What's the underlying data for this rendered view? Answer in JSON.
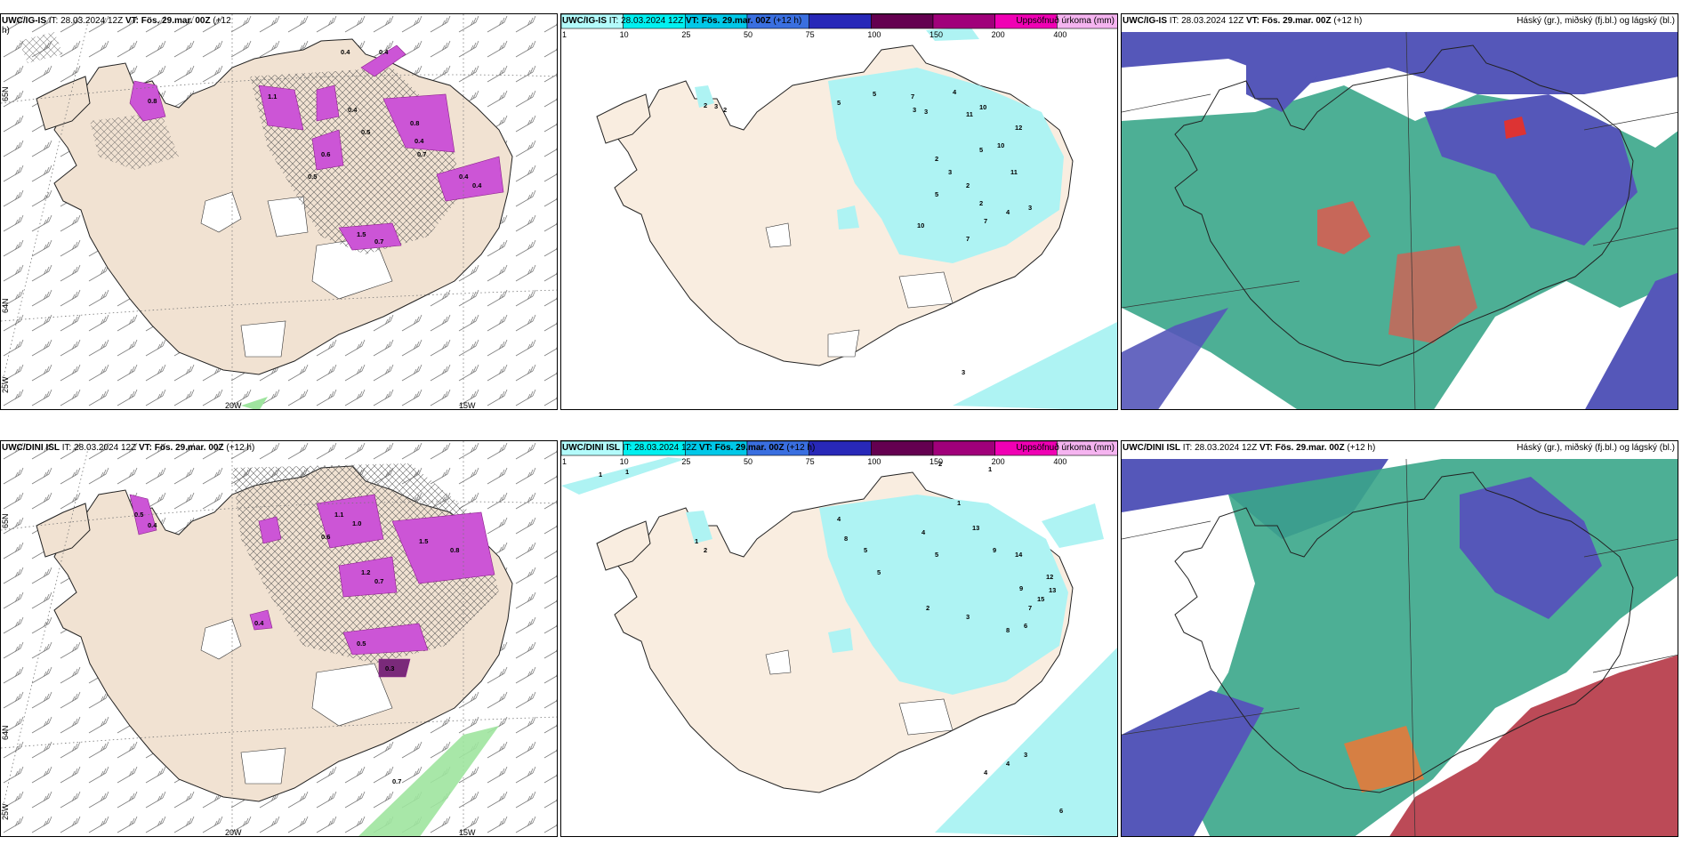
{
  "rows": [
    {
      "panels": [
        {
          "title_model": "UWC/IG-IS",
          "title_it": "IT: 28.03.2024 12Z",
          "title_vt": "VT: Fös. 29.mar. 00Z",
          "title_lead": "(+12",
          "title_lead2": "h)",
          "right_label": ""
        },
        {
          "title_model": "UWC/IG-IS",
          "title_it": "IT: 28.03.2024 12Z",
          "title_vt": "VT: Fös. 29.mar. 00Z",
          "title_lead": "(+12 h)",
          "right_label": "Uppsöfnuð úrkoma (mm)"
        },
        {
          "title_model": "UWC/IG-IS",
          "title_it": "IT: 28.03.2024 12Z",
          "title_vt": "VT: Fös. 29.mar. 00Z",
          "title_lead": "(+12 h)",
          "right_label": "Háský (gr.), miðský (fj.bl.) og lágský (bl.)"
        }
      ]
    },
    {
      "panels": [
        {
          "title_model": "UWC/DINI ISL",
          "title_it": "IT: 28.03.2024 12Z",
          "title_vt": "VT: Fös. 29.mar. 00Z",
          "title_lead": "(+12 h)",
          "right_label": ""
        },
        {
          "title_model": "UWC/DINI ISL",
          "title_it": "IT: 28.03.2024 12Z",
          "title_vt": "VT: Fös. 29.mar. 00Z",
          "title_lead": "(+12 h)",
          "right_label": "Uppsöfnuð úrkoma (mm)"
        },
        {
          "title_model": "UWC/DINI ISL",
          "title_it": "IT: 28.03.2024 12Z",
          "title_vt": "VT: Fös. 29.mar. 00Z",
          "title_lead": "(+12 h)",
          "right_label": "Háský (gr.), miðský (fj.bl.) og lágský (bl.)"
        }
      ]
    }
  ],
  "axis_labels": {
    "lon_20w": "20W",
    "lon_15w": "15W",
    "lat_65n": "65N",
    "lat_64n": "64N",
    "lon_25w": "25W"
  },
  "precip_colorbar": {
    "ticks": [
      "1",
      "10",
      "25",
      "50",
      "75",
      "100",
      "150",
      "200",
      "400"
    ],
    "colors": [
      "#b3fbfb",
      "#00f0f0",
      "#00c8e8",
      "#3a6fe0",
      "#2828b8",
      "#640050",
      "#a0007a",
      "#f000b4",
      "#f5b4f0"
    ]
  },
  "colors": {
    "land": "#f6ebe0",
    "land_dark": "#eedccc",
    "snow_field": "#ffffff",
    "precip_light": "#aef3f3",
    "purple": "#d24ed2",
    "cloud_low": "#5557b9",
    "cloud_mid": "#3aa68a",
    "cloud_high": "#e6554a"
  },
  "panel_values": {
    "top_left": [
      "0.4",
      "0.4",
      "0.8",
      "1.1",
      "0.4",
      "0.5",
      "0.8",
      "0.4",
      "0.7",
      "0.6",
      "0.4",
      "0.4",
      "1.5",
      "0.7",
      "0.5"
    ],
    "top_mid": [
      "2",
      "3",
      "2",
      "5",
      "5",
      "7",
      "4",
      "10",
      "3",
      "3",
      "11",
      "12",
      "5",
      "10",
      "2",
      "3",
      "2",
      "11",
      "5",
      "2",
      "3",
      "4",
      "7",
      "10",
      "7",
      "3"
    ],
    "bot_left": [
      "0.5",
      "0.4",
      "1.1",
      "1.0",
      "0.6",
      "1.5",
      "0.8",
      "1.2",
      "0.7",
      "0.5",
      "0.3",
      "0.4",
      "0.7"
    ],
    "bot_mid": [
      "1",
      "1",
      "2",
      "1",
      "1",
      "2",
      "4",
      "8",
      "4",
      "13",
      "1",
      "5",
      "5",
      "9",
      "14",
      "12",
      "13",
      "15",
      "9",
      "5",
      "2",
      "3",
      "8",
      "6",
      "7",
      "4",
      "4",
      "3",
      "6"
    ]
  }
}
